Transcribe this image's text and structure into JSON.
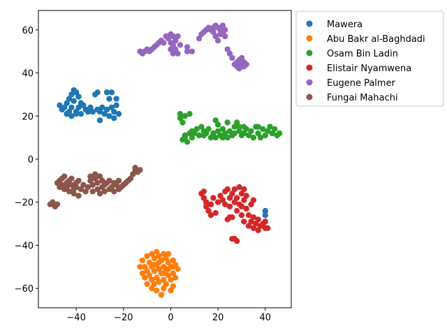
{
  "chart_data": {
    "type": "scatter",
    "title": "",
    "xlabel": "",
    "ylabel": "",
    "xlim": [
      -56,
      51
    ],
    "ylim": [
      -69,
      69
    ],
    "x_ticks": [
      -40,
      -20,
      0,
      20,
      40
    ],
    "x_tick_labels": [
      "−40",
      "−20",
      "0",
      "20",
      "40"
    ],
    "y_ticks": [
      -60,
      -40,
      -20,
      0,
      20,
      40,
      60
    ],
    "y_tick_labels": [
      "−60",
      "−40",
      "−20",
      "0",
      "20",
      "40",
      "60"
    ],
    "grid": false,
    "legend_position": "outside-top-right",
    "series": [
      {
        "name": "Mawera",
        "color": "#1f77b4",
        "points": [
          [
            -47,
            25
          ],
          [
            -46,
            23
          ],
          [
            -45,
            24
          ],
          [
            -44,
            21
          ],
          [
            -44,
            26
          ],
          [
            -43,
            28
          ],
          [
            -43,
            22
          ],
          [
            -42,
            30
          ],
          [
            -42,
            24
          ],
          [
            -41,
            32
          ],
          [
            -41,
            27
          ],
          [
            -40,
            31
          ],
          [
            -40,
            22
          ],
          [
            -39,
            29
          ],
          [
            -39,
            24
          ],
          [
            -38,
            26
          ],
          [
            -38,
            21
          ],
          [
            -37,
            25
          ],
          [
            -36,
            23
          ],
          [
            -35,
            22
          ],
          [
            -34,
            24
          ],
          [
            -33,
            22
          ],
          [
            -32,
            30
          ],
          [
            -31,
            31
          ],
          [
            -31,
            23
          ],
          [
            -30,
            22
          ],
          [
            -30,
            18
          ],
          [
            -29,
            24
          ],
          [
            -28,
            21
          ],
          [
            -27,
            31
          ],
          [
            -27,
            23
          ],
          [
            -26,
            20
          ],
          [
            -26,
            28
          ],
          [
            -25,
            24
          ],
          [
            -25,
            31
          ],
          [
            -24,
            22
          ],
          [
            -24,
            19
          ],
          [
            -23,
            25
          ],
          [
            -23,
            28
          ],
          [
            -22,
            21
          ],
          [
            -44,
            21
          ],
          [
            -40,
            21
          ],
          [
            -42,
            20
          ],
          [
            40,
            -24
          ],
          [
            40,
            -26
          ]
        ]
      },
      {
        "name": "Abu Bakr al-Baghdadi",
        "color": "#ff7f0e",
        "points": [
          [
            -12,
            -47
          ],
          [
            -11,
            -50
          ],
          [
            -11,
            -55
          ],
          [
            -10,
            -45
          ],
          [
            -10,
            -52
          ],
          [
            -10,
            -58
          ],
          [
            -9,
            -48
          ],
          [
            -9,
            -54
          ],
          [
            -8,
            -44
          ],
          [
            -8,
            -50
          ],
          [
            -8,
            -56
          ],
          [
            -8,
            -60
          ],
          [
            -7,
            -46
          ],
          [
            -7,
            -52
          ],
          [
            -7,
            -58
          ],
          [
            -6,
            -43
          ],
          [
            -6,
            -49
          ],
          [
            -6,
            -55
          ],
          [
            -6,
            -61
          ],
          [
            -5,
            -45
          ],
          [
            -5,
            -51
          ],
          [
            -5,
            -57
          ],
          [
            -4,
            -47
          ],
          [
            -4,
            -53
          ],
          [
            -4,
            -63
          ],
          [
            -3,
            -44
          ],
          [
            -3,
            -50
          ],
          [
            -3,
            -56
          ],
          [
            -3,
            -60
          ],
          [
            -2,
            -46
          ],
          [
            -2,
            -52
          ],
          [
            -2,
            -58
          ],
          [
            -1,
            -48
          ],
          [
            -1,
            -54
          ],
          [
            -1,
            -44
          ],
          [
            0,
            -50
          ],
          [
            0,
            -56
          ],
          [
            0,
            -61
          ],
          [
            1,
            -47
          ],
          [
            1,
            -53
          ],
          [
            1,
            -59
          ],
          [
            2,
            -49
          ],
          [
            2,
            -55
          ],
          [
            3,
            -51
          ],
          [
            -12,
            -53
          ],
          [
            -13,
            -50
          ],
          [
            -7,
            -49
          ],
          [
            -5,
            -48
          ],
          [
            -3,
            -53
          ],
          [
            -1,
            -51
          ],
          [
            1,
            -50
          ]
        ]
      },
      {
        "name": "Osam Bin Ladin",
        "color": "#2ca02c",
        "points": [
          [
            4,
            19
          ],
          [
            4,
            21
          ],
          [
            5,
            17
          ],
          [
            6,
            20
          ],
          [
            8,
            21
          ],
          [
            5,
            9
          ],
          [
            6,
            11
          ],
          [
            7,
            8
          ],
          [
            8,
            12
          ],
          [
            9,
            10
          ],
          [
            10,
            12
          ],
          [
            11,
            14
          ],
          [
            12,
            11
          ],
          [
            13,
            15
          ],
          [
            14,
            13
          ],
          [
            15,
            12
          ],
          [
            16,
            14
          ],
          [
            17,
            10
          ],
          [
            18,
            12
          ],
          [
            19,
            18
          ],
          [
            19,
            10
          ],
          [
            20,
            13
          ],
          [
            20,
            16
          ],
          [
            21,
            11
          ],
          [
            22,
            14
          ],
          [
            23,
            12
          ],
          [
            24,
            17
          ],
          [
            24,
            10
          ],
          [
            25,
            13
          ],
          [
            26,
            11
          ],
          [
            27,
            15
          ],
          [
            27,
            12
          ],
          [
            28,
            17
          ],
          [
            29,
            13
          ],
          [
            30,
            11
          ],
          [
            31,
            15
          ],
          [
            31,
            12
          ],
          [
            32,
            14
          ],
          [
            33,
            11
          ],
          [
            34,
            13
          ],
          [
            35,
            10
          ],
          [
            36,
            15
          ],
          [
            37,
            12
          ],
          [
            38,
            10
          ],
          [
            39,
            14
          ],
          [
            40,
            11
          ],
          [
            41,
            13
          ],
          [
            42,
            15
          ],
          [
            43,
            12
          ],
          [
            44,
            14
          ],
          [
            45,
            11
          ],
          [
            46,
            12
          ],
          [
            6,
            10
          ],
          [
            9,
            13
          ],
          [
            14,
            11
          ],
          [
            22,
            10
          ],
          [
            29,
            15
          ],
          [
            37,
            15
          ]
        ]
      },
      {
        "name": "Elistair Nyamwena",
        "color": "#d62728",
        "points": [
          [
            13,
            -16
          ],
          [
            14,
            -18
          ],
          [
            14,
            -15
          ],
          [
            15,
            -20
          ],
          [
            15,
            -22
          ],
          [
            16,
            -24
          ],
          [
            17,
            -26
          ],
          [
            17,
            -21
          ],
          [
            18,
            -18
          ],
          [
            19,
            -25
          ],
          [
            20,
            -20
          ],
          [
            21,
            -17
          ],
          [
            22,
            -19
          ],
          [
            23,
            -15
          ],
          [
            23,
            -21
          ],
          [
            24,
            -14
          ],
          [
            24,
            -28
          ],
          [
            25,
            -18
          ],
          [
            25,
            -22
          ],
          [
            26,
            -16
          ],
          [
            26,
            -27
          ],
          [
            27,
            -20
          ],
          [
            27,
            -14
          ],
          [
            27,
            -37
          ],
          [
            28,
            -18
          ],
          [
            28,
            -24
          ],
          [
            29,
            -13
          ],
          [
            29,
            -21
          ],
          [
            30,
            -16
          ],
          [
            30,
            -26
          ],
          [
            31,
            -19
          ],
          [
            31,
            -14
          ],
          [
            31,
            -29
          ],
          [
            32,
            -23
          ],
          [
            32,
            -17
          ],
          [
            33,
            -26
          ],
          [
            33,
            -31
          ],
          [
            34,
            -21
          ],
          [
            34,
            -29
          ],
          [
            35,
            -27
          ],
          [
            35,
            -32
          ],
          [
            36,
            -30
          ],
          [
            37,
            -28
          ],
          [
            37,
            -33
          ],
          [
            38,
            -31
          ],
          [
            39,
            -30
          ],
          [
            40,
            -32
          ],
          [
            40,
            -29
          ],
          [
            41,
            -32
          ],
          [
            26,
            -37
          ],
          [
            28,
            -38
          ],
          [
            25,
            -27
          ],
          [
            30,
            -22
          ],
          [
            35,
            -19
          ]
        ]
      },
      {
        "name": "Eugene Palmer",
        "color": "#9467bd",
        "points": [
          [
            -13,
            50
          ],
          [
            -12,
            49
          ],
          [
            -11,
            50
          ],
          [
            -10,
            51
          ],
          [
            -9,
            50
          ],
          [
            -8,
            51
          ],
          [
            -7,
            52
          ],
          [
            -6,
            53
          ],
          [
            -5,
            54
          ],
          [
            -4,
            55
          ],
          [
            -3,
            54
          ],
          [
            -2,
            57
          ],
          [
            -1,
            56
          ],
          [
            0,
            58
          ],
          [
            0,
            54
          ],
          [
            0,
            51
          ],
          [
            1,
            57
          ],
          [
            1,
            53
          ],
          [
            1,
            49
          ],
          [
            2,
            55
          ],
          [
            2,
            51
          ],
          [
            3,
            57
          ],
          [
            3,
            49
          ],
          [
            4,
            53
          ],
          [
            7,
            52
          ],
          [
            7,
            50
          ],
          [
            9,
            50
          ],
          [
            13,
            58
          ],
          [
            14,
            59
          ],
          [
            15,
            60
          ],
          [
            16,
            61
          ],
          [
            17,
            60
          ],
          [
            18,
            59
          ],
          [
            19,
            62
          ],
          [
            19,
            57
          ],
          [
            20,
            61
          ],
          [
            20,
            55
          ],
          [
            21,
            60
          ],
          [
            21,
            58
          ],
          [
            22,
            59
          ],
          [
            22,
            62
          ],
          [
            23,
            57
          ],
          [
            24,
            51
          ],
          [
            25,
            49
          ],
          [
            26,
            47
          ],
          [
            27,
            44
          ],
          [
            28,
            45
          ],
          [
            28,
            43
          ],
          [
            29,
            46
          ],
          [
            29,
            42
          ],
          [
            30,
            44
          ],
          [
            30,
            47
          ],
          [
            31,
            43
          ],
          [
            31,
            45
          ],
          [
            32,
            44
          ],
          [
            12,
            56
          ],
          [
            18,
            61
          ],
          [
            23,
            60
          ]
        ]
      },
      {
        "name": "Fungai Mahachi",
        "color": "#8c564b",
        "points": [
          [
            -51,
            -21
          ],
          [
            -50,
            -20
          ],
          [
            -49,
            -22
          ],
          [
            -48,
            -21
          ],
          [
            -48,
            -11
          ],
          [
            -47,
            -13
          ],
          [
            -47,
            -10
          ],
          [
            -46,
            -12
          ],
          [
            -46,
            -9
          ],
          [
            -45,
            -14
          ],
          [
            -45,
            -8
          ],
          [
            -44,
            -11
          ],
          [
            -44,
            -13
          ],
          [
            -43,
            -10
          ],
          [
            -43,
            -15
          ],
          [
            -42,
            -12
          ],
          [
            -42,
            -9
          ],
          [
            -41,
            -14
          ],
          [
            -41,
            -16
          ],
          [
            -40,
            -11
          ],
          [
            -40,
            -13
          ],
          [
            -39,
            -10
          ],
          [
            -39,
            -17
          ],
          [
            -38,
            -14
          ],
          [
            -37,
            -12
          ],
          [
            -36,
            -15
          ],
          [
            -35,
            -13
          ],
          [
            -34,
            -10
          ],
          [
            -34,
            -8
          ],
          [
            -33,
            -12
          ],
          [
            -33,
            -15
          ],
          [
            -32,
            -9
          ],
          [
            -32,
            -7
          ],
          [
            -31,
            -11
          ],
          [
            -31,
            -14
          ],
          [
            -30,
            -8
          ],
          [
            -30,
            -16
          ],
          [
            -29,
            -10
          ],
          [
            -29,
            -13
          ],
          [
            -28,
            -12
          ],
          [
            -28,
            -15
          ],
          [
            -27,
            -11
          ],
          [
            -26,
            -14
          ],
          [
            -26,
            -10
          ],
          [
            -25,
            -13
          ],
          [
            -24,
            -15
          ],
          [
            -24,
            -11
          ],
          [
            -23,
            -12
          ],
          [
            -22,
            -14
          ],
          [
            -22,
            -10
          ],
          [
            -21,
            -13
          ],
          [
            -20,
            -12
          ],
          [
            -19,
            -11
          ],
          [
            -18,
            -10
          ],
          [
            -17,
            -9
          ],
          [
            -16,
            -7
          ],
          [
            -15,
            -5
          ],
          [
            -15,
            -4
          ],
          [
            -14,
            -6
          ],
          [
            -13,
            -5
          ]
        ]
      }
    ]
  }
}
